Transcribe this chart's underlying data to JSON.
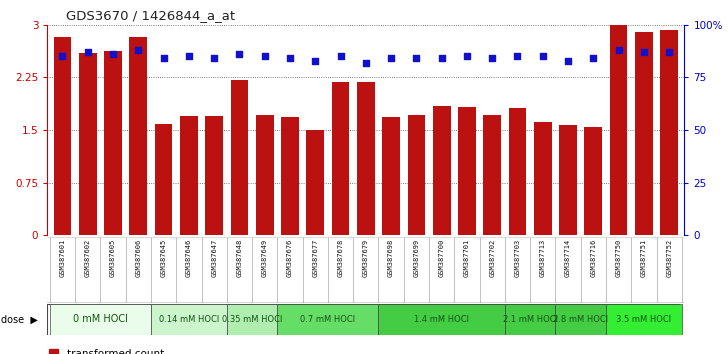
{
  "title": "GDS3670 / 1426844_a_at",
  "samples": [
    "GSM387601",
    "GSM387602",
    "GSM387605",
    "GSM387606",
    "GSM387645",
    "GSM387646",
    "GSM387647",
    "GSM387648",
    "GSM387649",
    "GSM387676",
    "GSM387677",
    "GSM387678",
    "GSM387679",
    "GSM387698",
    "GSM387699",
    "GSM387700",
    "GSM387701",
    "GSM387702",
    "GSM387703",
    "GSM387713",
    "GSM387714",
    "GSM387716",
    "GSM387750",
    "GSM387751",
    "GSM387752"
  ],
  "red_values": [
    2.82,
    2.6,
    2.62,
    2.82,
    1.59,
    1.7,
    1.7,
    2.22,
    1.72,
    1.68,
    1.5,
    2.18,
    2.18,
    1.68,
    1.72,
    1.85,
    1.83,
    1.72,
    1.82,
    1.62,
    1.57,
    1.55,
    3.02,
    2.9,
    2.93
  ],
  "blue_pct": [
    85,
    87,
    86,
    88,
    84,
    85,
    84,
    86,
    85,
    84,
    83,
    85,
    82,
    84,
    84,
    84,
    85,
    84,
    85,
    85,
    83,
    84,
    88,
    87,
    87
  ],
  "dose_groups": [
    {
      "label": "0 mM HOCl",
      "start": 0,
      "end": 4,
      "color": "#eafcea"
    },
    {
      "label": "0.14 mM HOCl",
      "start": 4,
      "end": 7,
      "color": "#cdf5cd"
    },
    {
      "label": "0.35 mM HOCl",
      "start": 7,
      "end": 9,
      "color": "#b0eeb0"
    },
    {
      "label": "0.7 mM HOCl",
      "start": 9,
      "end": 13,
      "color": "#66dd66"
    },
    {
      "label": "1.4 mM HOCl",
      "start": 13,
      "end": 18,
      "color": "#44cc44"
    },
    {
      "label": "2.1 mM HOCl",
      "start": 18,
      "end": 20,
      "color": "#44cc44"
    },
    {
      "label": "2.8 mM HOCl",
      "start": 20,
      "end": 22,
      "color": "#44cc44"
    },
    {
      "label": "3.5 mM HOCl",
      "start": 22,
      "end": 25,
      "color": "#33ee33"
    }
  ],
  "ylim": [
    0,
    3.0
  ],
  "yticks": [
    0,
    0.75,
    1.5,
    2.25,
    3.0
  ],
  "ytick_labels": [
    "0",
    "0.75",
    "1.5",
    "2.25",
    "3"
  ],
  "right_yticks": [
    0,
    25,
    50,
    75,
    100
  ],
  "right_ytick_labels": [
    "0",
    "25",
    "50",
    "75",
    "100%"
  ],
  "bar_color": "#bb1111",
  "dot_color": "#1111cc",
  "plot_bg": "#ffffff",
  "ylabel_color": "#cc0000",
  "ylabel2_color": "#0000cc"
}
